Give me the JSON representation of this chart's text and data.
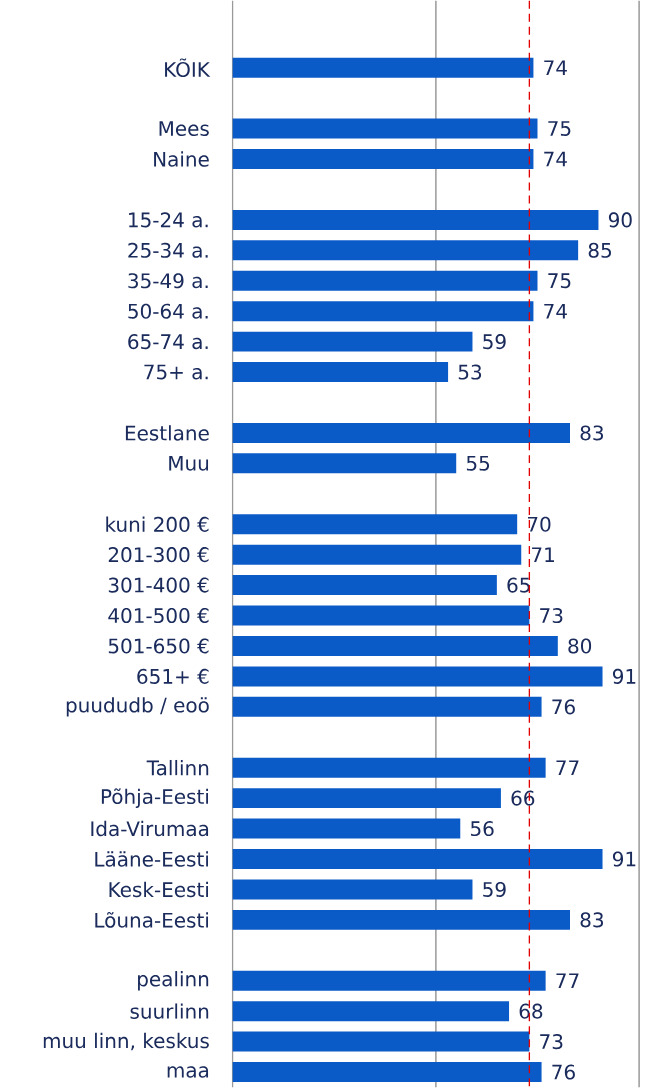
{
  "chart_data": {
    "type": "bar",
    "orientation": "horizontal",
    "categories": [
      "KÕIK",
      null,
      "Mees",
      "Naine",
      null,
      "15-24 a.",
      "25-34 a.",
      "35-49 a.",
      "50-64 a.",
      "65-74 a.",
      "75+ a.",
      null,
      "Eestlane",
      "Muu",
      null,
      "kuni 200 €",
      "201-300 €",
      "301-400 €",
      "401-500 €",
      "501-650 €",
      "651+ €",
      "puududb / eoö",
      null,
      "Tallinn",
      "Põhja-Eesti",
      "Ida-Virumaa",
      "Lääne-Eesti",
      "Kesk-Eesti",
      "Lõuna-Eesti",
      null,
      "pealinn",
      "suurlinn",
      "muu linn, keskus",
      "maa"
    ],
    "values": [
      74,
      null,
      75,
      74,
      null,
      90,
      85,
      75,
      74,
      59,
      53,
      null,
      83,
      55,
      null,
      70,
      71,
      65,
      73,
      80,
      91,
      76,
      null,
      77,
      66,
      56,
      91,
      59,
      83,
      null,
      77,
      68,
      73,
      76
    ],
    "color": "#0a5ac8",
    "xlim": [
      0,
      100
    ],
    "tick_labels": "y",
    "data_labels": true,
    "ref_lines": [
      {
        "axis": "x",
        "value": 50,
        "color": "#999999",
        "line_style": "solid"
      },
      {
        "axis": "x",
        "value": 100,
        "color": "#999999",
        "line_style": "solid"
      },
      {
        "axis": "x",
        "value": 73,
        "color": "#e00000",
        "line_style": "dashed"
      }
    ]
  }
}
